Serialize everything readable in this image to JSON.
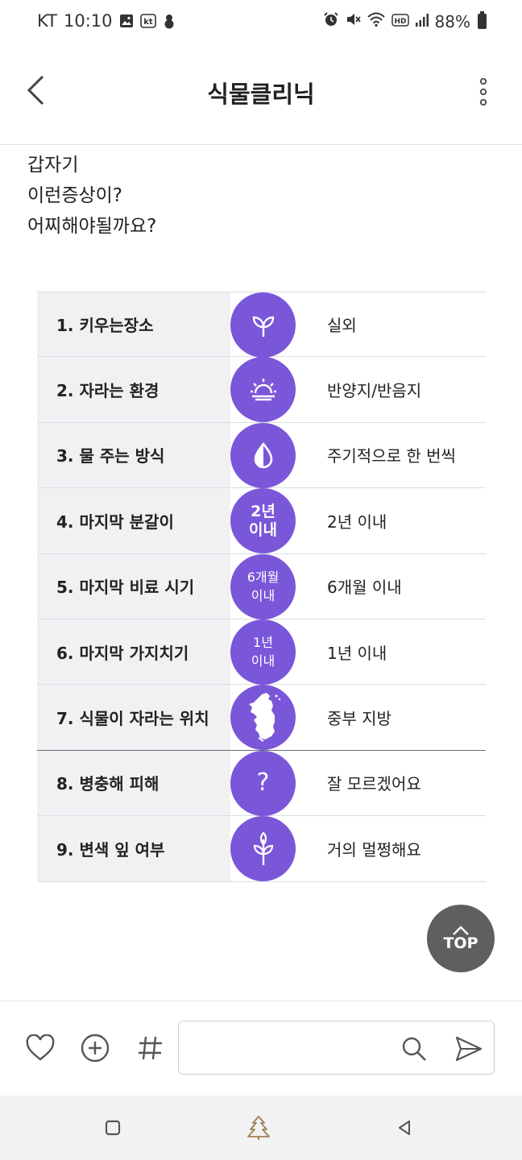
{
  "status_bar": {
    "carrier": "KT",
    "time": "10:10",
    "kt_badge": "kt",
    "battery": "88%",
    "icons": [
      "gallery-icon",
      "kt-app-icon",
      "snowman-icon",
      "alarm-icon",
      "mute-icon",
      "wifi-icon",
      "hd-icon",
      "signal-icon",
      "battery-icon"
    ]
  },
  "header": {
    "title": "식물클리닉",
    "back_icon": "chevron-left-icon",
    "more_icon": "more-vertical-icon"
  },
  "post": {
    "lines": [
      "갑자기",
      "이런증상이?",
      "어찌해야될까요?"
    ]
  },
  "info_rows": [
    {
      "label": "1. 키우는장소",
      "icon": "sprout-icon",
      "value": "실외"
    },
    {
      "label": "2. 자라는 환경",
      "icon": "sunrise-icon",
      "value": "반양지/반음지"
    },
    {
      "label": "3. 물 주는 방식",
      "icon": "water-drop-icon",
      "value": "주기적으로 한 번씩"
    },
    {
      "label": "4. 마지막 분갈이",
      "circle_line1": "2년",
      "circle_line2": "이내",
      "value": "2년 이내"
    },
    {
      "label": "5. 마지막 비료 시기",
      "circle_line1": "6개월",
      "circle_line2": "이내",
      "value": "6개월 이내"
    },
    {
      "label": "6. 마지막 가지치기",
      "circle_line1": "1년",
      "circle_line2": "이내",
      "value": "1년 이내"
    },
    {
      "label": "7. 식물이 자라는 위치",
      "icon": "korea-map-icon",
      "value": "중부 지방"
    },
    {
      "label": "8. 병충해 피해",
      "circle_symbol": "?",
      "value": "잘 모르겠어요"
    },
    {
      "label": "9. 변색 잎 여부",
      "icon": "plant-icon",
      "value": "거의 멀쩡해요"
    }
  ],
  "top_button": {
    "label": "TOP"
  },
  "comment_bar": {
    "placeholder": "",
    "icons": [
      "heart-icon",
      "add-circle-icon",
      "hashtag-icon",
      "search-icon",
      "send-icon"
    ]
  },
  "colors": {
    "accent": "#7a57d9",
    "label_bg": "#f1f1f3",
    "top_button_bg": "#5f5f5f",
    "nav_bg": "#f2f2f4"
  }
}
